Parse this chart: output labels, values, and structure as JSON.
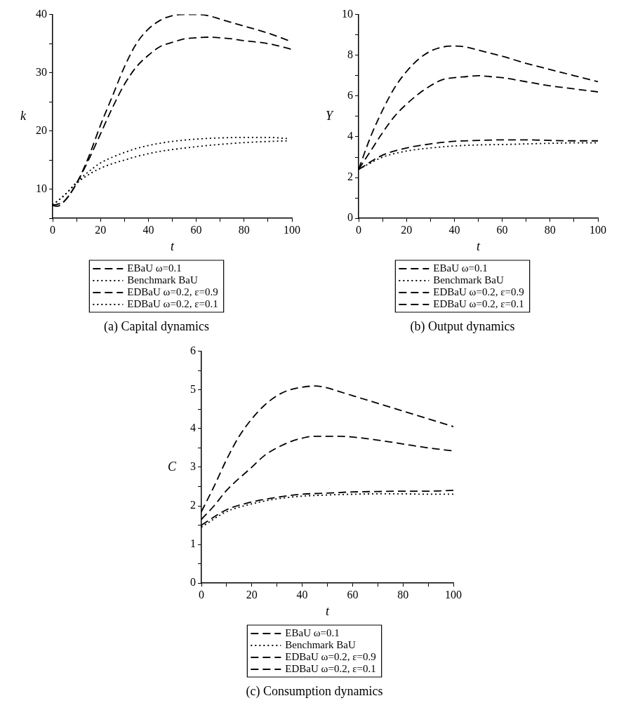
{
  "chart_data": [
    {
      "type": "line",
      "title": "(a) Capital dynamics",
      "xlabel": "t",
      "ylabel": "k",
      "xlim": [
        0,
        100
      ],
      "ylim": [
        5,
        40
      ],
      "xticks": [
        0,
        {
          "value": 10,
          "label": null
        },
        20,
        {
          "value": 30,
          "label": null
        },
        40,
        {
          "value": 50,
          "label": null
        },
        60,
        {
          "value": 70,
          "label": null
        },
        80,
        {
          "value": 90,
          "label": null
        },
        100
      ],
      "yticks": [
        {
          "value": 5,
          "label": null
        },
        10,
        {
          "value": 15,
          "label": null
        },
        20,
        {
          "value": 25,
          "label": null
        },
        30,
        {
          "value": 35,
          "label": null
        },
        40
      ],
      "legend": "bottom",
      "series": [
        {
          "name": "EBaU ω=0.1",
          "color": "#000000",
          "line_style": "dashed",
          "x": [
            0,
            5,
            10,
            15,
            20,
            25,
            30,
            35,
            40,
            45,
            50,
            55,
            60,
            65,
            70,
            75,
            80,
            90,
            100
          ],
          "values": [
            7.2,
            8,
            11,
            15,
            19.5,
            24,
            28,
            31,
            33,
            34.5,
            35.2,
            35.8,
            36,
            36.1,
            36,
            35.8,
            35.5,
            35,
            34
          ]
        },
        {
          "name": "Benchmark BaU",
          "color": "#000000",
          "line_style": "dotted",
          "x": [
            0,
            5,
            10,
            15,
            20,
            25,
            30,
            35,
            40,
            45,
            50,
            60,
            70,
            80,
            90,
            98
          ],
          "values": [
            7.3,
            9,
            11,
            12.5,
            13.6,
            14.4,
            15,
            15.6,
            16.1,
            16.5,
            16.8,
            17.3,
            17.7,
            18,
            18.2,
            18.3
          ]
        },
        {
          "name": "EDBaU ω=0.2, ε=0.9",
          "color": "#000000",
          "line_style": "dashed",
          "x": [
            0,
            2,
            5,
            10,
            15,
            20,
            25,
            30,
            35,
            40,
            45,
            50,
            55,
            60,
            65,
            70,
            80,
            90,
            100
          ],
          "values": [
            7.2,
            7.1,
            8,
            11,
            15.5,
            21,
            26,
            31,
            35,
            37.5,
            39,
            39.8,
            40,
            40,
            39.8,
            39.2,
            38,
            36.8,
            35.3
          ]
        },
        {
          "name": "EDBaU ω=0.2, ε=0.1",
          "color": "#000000",
          "line_style": "dotted",
          "x": [
            0,
            5,
            10,
            15,
            20,
            25,
            30,
            35,
            40,
            45,
            50,
            60,
            70,
            80,
            90,
            98
          ],
          "values": [
            7.3,
            9,
            11.2,
            13,
            14.5,
            15.5,
            16.3,
            17,
            17.5,
            17.9,
            18.2,
            18.6,
            18.8,
            18.9,
            18.9,
            18.7
          ]
        }
      ]
    },
    {
      "type": "line",
      "title": "(b) Output dynamics",
      "xlabel": "t",
      "ylabel": "Y",
      "xlim": [
        0,
        100
      ],
      "ylim": [
        0,
        10
      ],
      "xticks": [
        0,
        {
          "value": 10,
          "label": null
        },
        20,
        {
          "value": 30,
          "label": null
        },
        40,
        {
          "value": 50,
          "label": null
        },
        60,
        {
          "value": 70,
          "label": null
        },
        80,
        {
          "value": 90,
          "label": null
        },
        100
      ],
      "yticks": [
        0,
        {
          "value": 1,
          "label": null
        },
        2,
        {
          "value": 3,
          "label": null
        },
        4,
        {
          "value": 5,
          "label": null
        },
        6,
        {
          "value": 7,
          "label": null
        },
        8,
        {
          "value": 9,
          "label": null
        },
        10
      ],
      "legend": "bottom",
      "series": [
        {
          "name": "EBaU ω=0.1",
          "color": "#000000",
          "line_style": "dashed",
          "x": [
            0,
            5,
            10,
            15,
            20,
            25,
            30,
            35,
            40,
            45,
            50,
            55,
            60,
            70,
            80,
            90,
            100
          ],
          "values": [
            2.4,
            3.3,
            4.2,
            5,
            5.6,
            6.1,
            6.5,
            6.8,
            6.9,
            6.95,
            7,
            6.95,
            6.9,
            6.7,
            6.5,
            6.35,
            6.2
          ]
        },
        {
          "name": "Benchmark BaU",
          "color": "#000000",
          "line_style": "dotted",
          "x": [
            0,
            10,
            20,
            30,
            40,
            50,
            60,
            70,
            80,
            90,
            100
          ],
          "values": [
            2.4,
            3,
            3.3,
            3.45,
            3.55,
            3.6,
            3.62,
            3.65,
            3.68,
            3.7,
            3.7
          ]
        },
        {
          "name": "EDBaU ω=0.2, ε=0.9",
          "color": "#000000",
          "line_style": "dashed",
          "x": [
            0,
            5,
            10,
            15,
            20,
            25,
            30,
            35,
            40,
            45,
            50,
            55,
            60,
            70,
            80,
            90,
            100
          ],
          "values": [
            2.4,
            4,
            5.3,
            6.4,
            7.2,
            7.8,
            8.2,
            8.4,
            8.45,
            8.4,
            8.25,
            8.1,
            7.95,
            7.6,
            7.3,
            7,
            6.7
          ]
        },
        {
          "name": "EDBaU ω=0.2, ε=0.1",
          "color": "#000000",
          "line_style": "dashed",
          "x": [
            0,
            10,
            20,
            30,
            40,
            50,
            60,
            70,
            80,
            90,
            100
          ],
          "values": [
            2.4,
            3.1,
            3.45,
            3.65,
            3.78,
            3.82,
            3.85,
            3.85,
            3.82,
            3.8,
            3.8
          ]
        }
      ]
    },
    {
      "type": "line",
      "title": "(c) Consumption dynamics",
      "xlabel": "t",
      "ylabel": "C",
      "xlim": [
        0,
        100
      ],
      "ylim": [
        0,
        6
      ],
      "xticks": [
        0,
        {
          "value": 10,
          "label": null
        },
        20,
        {
          "value": 30,
          "label": null
        },
        40,
        {
          "value": 50,
          "label": null
        },
        60,
        {
          "value": 70,
          "label": null
        },
        80,
        {
          "value": 90,
          "label": null
        },
        100
      ],
      "yticks": [
        0,
        {
          "value": 0.5,
          "label": null
        },
        1,
        {
          "value": 1.5,
          "label": null
        },
        2,
        {
          "value": 2.5,
          "label": null
        },
        3,
        {
          "value": 3.5,
          "label": null
        },
        4,
        {
          "value": 4.5,
          "label": null
        },
        5,
        {
          "value": 5.5,
          "label": null
        },
        6
      ],
      "legend": "bottom",
      "series": [
        {
          "name": "EBaU ω=0.1",
          "color": "#000000",
          "line_style": "dashed",
          "x": [
            0,
            5,
            10,
            20,
            25,
            30,
            35,
            40,
            45,
            50,
            55,
            60,
            70,
            80,
            90,
            100
          ],
          "values": [
            1.65,
            2,
            2.4,
            3,
            3.3,
            3.5,
            3.65,
            3.75,
            3.8,
            3.8,
            3.8,
            3.78,
            3.7,
            3.6,
            3.5,
            3.42
          ]
        },
        {
          "name": "Benchmark BaU",
          "color": "#000000",
          "line_style": "dotted",
          "x": [
            0,
            10,
            20,
            30,
            40,
            50,
            60,
            70,
            80,
            90,
            100
          ],
          "values": [
            1.45,
            1.85,
            2.05,
            2.18,
            2.25,
            2.28,
            2.3,
            2.31,
            2.31,
            2.3,
            2.3
          ]
        },
        {
          "name": "EDBaU ω=0.2, ε=0.9",
          "color": "#000000",
          "line_style": "dashed",
          "x": [
            0,
            5,
            10,
            15,
            20,
            25,
            30,
            35,
            40,
            45,
            50,
            55,
            60,
            70,
            80,
            90,
            100
          ],
          "values": [
            1.85,
            2.5,
            3.2,
            3.8,
            4.25,
            4.6,
            4.85,
            5,
            5.07,
            5.1,
            5.05,
            4.95,
            4.85,
            4.65,
            4.45,
            4.25,
            4.05
          ]
        },
        {
          "name": "EDBaU ω=0.2, ε=0.1",
          "color": "#000000",
          "line_style": "dashed",
          "x": [
            0,
            10,
            20,
            30,
            40,
            50,
            60,
            70,
            80,
            90,
            100
          ],
          "values": [
            1.5,
            1.9,
            2.1,
            2.22,
            2.3,
            2.33,
            2.36,
            2.37,
            2.38,
            2.38,
            2.4
          ]
        }
      ]
    }
  ]
}
